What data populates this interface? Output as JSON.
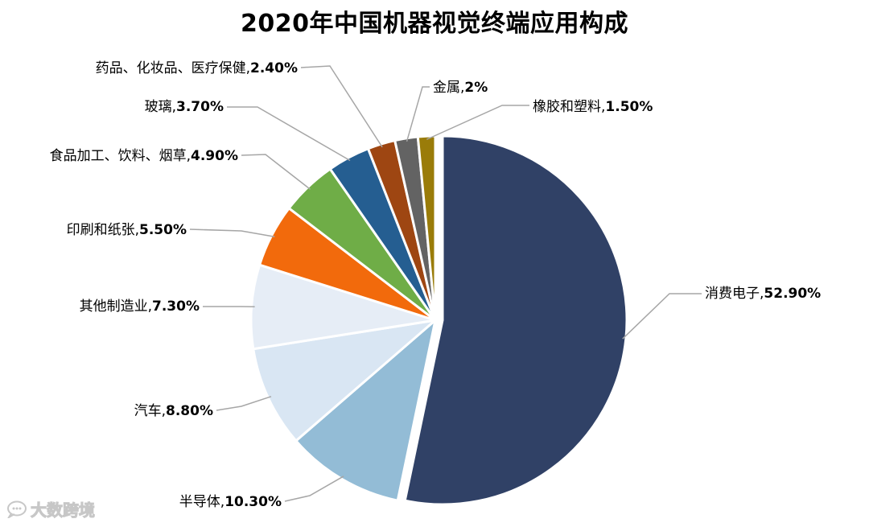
{
  "chart_data": {
    "type": "pie",
    "title": "2020年中国机器视觉终端应用构成",
    "slices": [
      {
        "label": "消费电子",
        "value": 52.9,
        "display": "52.90%",
        "color": "#304166"
      },
      {
        "label": "半导体",
        "value": 10.3,
        "display": "10.30%",
        "color": "#93bcd6"
      },
      {
        "label": "汽车",
        "value": 8.8,
        "display": "8.80%",
        "color": "#d9e6f3"
      },
      {
        "label": "其他制造业",
        "value": 7.3,
        "display": "7.30%",
        "color": "#e6edf6"
      },
      {
        "label": "印刷和纸张",
        "value": 5.5,
        "display": "5.50%",
        "color": "#f26a0c"
      },
      {
        "label": "食品加工、饮料、烟草",
        "value": 4.9,
        "display": "4.90%",
        "color": "#6fad47"
      },
      {
        "label": "玻璃",
        "value": 3.7,
        "display": "3.70%",
        "color": "#255e91"
      },
      {
        "label": "药品、化妆品、医疗保健",
        "value": 2.4,
        "display": "2.40%",
        "color": "#9e4612"
      },
      {
        "label": "金属",
        "value": 2.0,
        "display": "2%",
        "color": "#636363"
      },
      {
        "label": "橡胶和塑料",
        "value": 1.5,
        "display": "1.50%",
        "color": "#9a7c09"
      }
    ],
    "legend": "none",
    "data_labels": "outside-with-leader-lines"
  },
  "watermark": {
    "text": "大数跨境",
    "icon": "speech-bubble-icon"
  }
}
